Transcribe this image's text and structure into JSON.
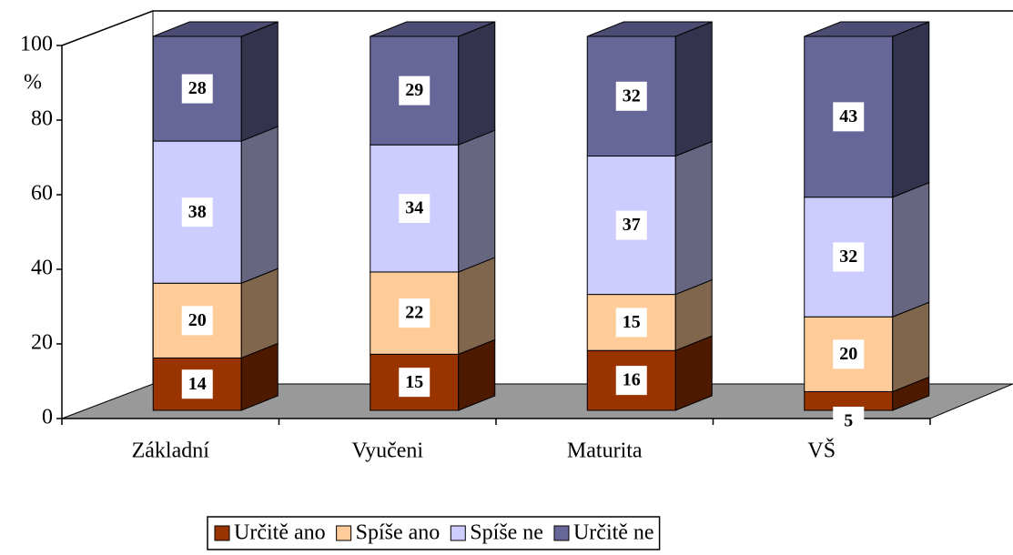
{
  "chart_data": {
    "type": "stacked_bar_3d",
    "y_label": "%",
    "categories": [
      "Základní",
      "Vyučeni",
      "Maturita",
      "VŠ"
    ],
    "series": [
      {
        "name": "Určitě ano",
        "color": "#993300",
        "values": [
          14,
          15,
          16,
          5
        ]
      },
      {
        "name": "Spíše ano",
        "color": "#ffcc99",
        "values": [
          20,
          22,
          15,
          20
        ]
      },
      {
        "name": "Spíše ne",
        "color": "#ccccff",
        "values": [
          38,
          34,
          37,
          32
        ]
      },
      {
        "name": "Určitě ne",
        "color": "#666699",
        "values": [
          28,
          29,
          32,
          43
        ]
      }
    ],
    "ylim": [
      0,
      100
    ],
    "yticks": [
      0,
      20,
      40,
      60,
      80,
      100
    ],
    "legend": "bottom"
  }
}
